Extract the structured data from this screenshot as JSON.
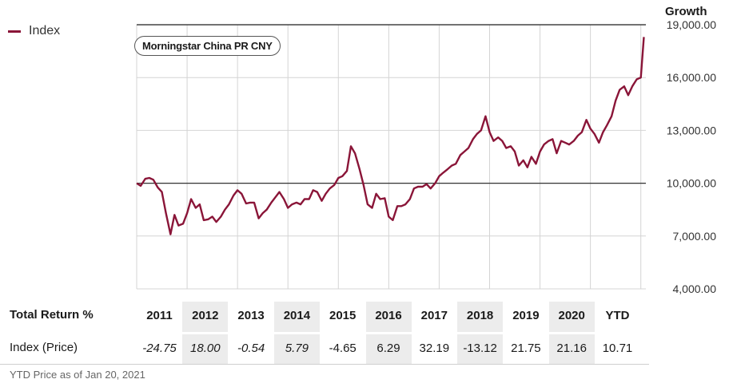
{
  "legend": {
    "label": "Index",
    "color": "#8a1538"
  },
  "growth_label": "Growth",
  "badge_label": "Morningstar China PR CNY",
  "chart_data": {
    "type": "line",
    "title": "Morningstar China PR CNY",
    "ylabel": "Growth",
    "ylim": [
      4000,
      19000
    ],
    "yticks": [
      4000,
      7000,
      10000,
      13000,
      16000,
      19000
    ],
    "ytick_labels": [
      "4,000.00",
      "7,000.00",
      "10,000.00",
      "13,000.00",
      "16,000.00",
      "19,000.00"
    ],
    "baseline": 10000,
    "xlim": [
      2011,
      2021.1
    ],
    "x_year_lines": [
      2011,
      2012,
      2013,
      2014,
      2015,
      2016,
      2017,
      2018,
      2019,
      2020,
      2021
    ],
    "series": [
      {
        "name": "Index",
        "color": "#8a1538",
        "points": [
          [
            2011.0,
            10000
          ],
          [
            2011.08,
            9850
          ],
          [
            2011.17,
            10250
          ],
          [
            2011.25,
            10300
          ],
          [
            2011.33,
            10200
          ],
          [
            2011.42,
            9750
          ],
          [
            2011.5,
            9500
          ],
          [
            2011.58,
            8300
          ],
          [
            2011.67,
            7100
          ],
          [
            2011.75,
            8200
          ],
          [
            2011.83,
            7600
          ],
          [
            2011.92,
            7700
          ],
          [
            2012.0,
            8300
          ],
          [
            2012.08,
            9100
          ],
          [
            2012.17,
            8600
          ],
          [
            2012.25,
            8800
          ],
          [
            2012.33,
            7900
          ],
          [
            2012.42,
            7950
          ],
          [
            2012.5,
            8100
          ],
          [
            2012.58,
            7800
          ],
          [
            2012.67,
            8100
          ],
          [
            2012.75,
            8500
          ],
          [
            2012.83,
            8800
          ],
          [
            2012.92,
            9300
          ],
          [
            2013.0,
            9600
          ],
          [
            2013.08,
            9400
          ],
          [
            2013.17,
            8850
          ],
          [
            2013.25,
            8900
          ],
          [
            2013.33,
            8900
          ],
          [
            2013.42,
            8000
          ],
          [
            2013.5,
            8300
          ],
          [
            2013.58,
            8500
          ],
          [
            2013.67,
            8900
          ],
          [
            2013.75,
            9200
          ],
          [
            2013.83,
            9500
          ],
          [
            2013.92,
            9100
          ],
          [
            2014.0,
            8600
          ],
          [
            2014.08,
            8800
          ],
          [
            2014.17,
            8900
          ],
          [
            2014.25,
            8800
          ],
          [
            2014.33,
            9100
          ],
          [
            2014.42,
            9100
          ],
          [
            2014.5,
            9600
          ],
          [
            2014.58,
            9500
          ],
          [
            2014.67,
            9000
          ],
          [
            2014.75,
            9400
          ],
          [
            2014.83,
            9700
          ],
          [
            2014.92,
            9900
          ],
          [
            2015.0,
            10300
          ],
          [
            2015.08,
            10400
          ],
          [
            2015.17,
            10700
          ],
          [
            2015.25,
            12100
          ],
          [
            2015.33,
            11700
          ],
          [
            2015.42,
            10800
          ],
          [
            2015.5,
            9900
          ],
          [
            2015.58,
            8800
          ],
          [
            2015.67,
            8600
          ],
          [
            2015.75,
            9400
          ],
          [
            2015.83,
            9100
          ],
          [
            2015.92,
            9150
          ],
          [
            2016.0,
            8100
          ],
          [
            2016.08,
            7900
          ],
          [
            2016.17,
            8700
          ],
          [
            2016.25,
            8700
          ],
          [
            2016.33,
            8800
          ],
          [
            2016.42,
            9100
          ],
          [
            2016.5,
            9700
          ],
          [
            2016.58,
            9800
          ],
          [
            2016.67,
            9800
          ],
          [
            2016.75,
            9950
          ],
          [
            2016.83,
            9700
          ],
          [
            2016.92,
            10000
          ],
          [
            2017.0,
            10400
          ],
          [
            2017.08,
            10600
          ],
          [
            2017.17,
            10800
          ],
          [
            2017.25,
            11000
          ],
          [
            2017.33,
            11100
          ],
          [
            2017.42,
            11600
          ],
          [
            2017.5,
            11800
          ],
          [
            2017.58,
            12000
          ],
          [
            2017.67,
            12500
          ],
          [
            2017.75,
            12800
          ],
          [
            2017.83,
            13000
          ],
          [
            2017.92,
            13800
          ],
          [
            2018.0,
            12900
          ],
          [
            2018.08,
            12400
          ],
          [
            2018.17,
            12600
          ],
          [
            2018.25,
            12400
          ],
          [
            2018.33,
            12000
          ],
          [
            2018.42,
            12100
          ],
          [
            2018.5,
            11800
          ],
          [
            2018.58,
            11000
          ],
          [
            2018.67,
            11300
          ],
          [
            2018.75,
            10900
          ],
          [
            2018.83,
            11500
          ],
          [
            2018.92,
            11100
          ],
          [
            2019.0,
            11800
          ],
          [
            2019.08,
            12200
          ],
          [
            2019.17,
            12400
          ],
          [
            2019.25,
            12500
          ],
          [
            2019.33,
            11700
          ],
          [
            2019.42,
            12400
          ],
          [
            2019.5,
            12300
          ],
          [
            2019.58,
            12200
          ],
          [
            2019.67,
            12400
          ],
          [
            2019.75,
            12700
          ],
          [
            2019.83,
            12900
          ],
          [
            2019.92,
            13600
          ],
          [
            2020.0,
            13100
          ],
          [
            2020.08,
            12800
          ],
          [
            2020.17,
            12300
          ],
          [
            2020.25,
            12900
          ],
          [
            2020.33,
            13300
          ],
          [
            2020.42,
            13800
          ],
          [
            2020.5,
            14700
          ],
          [
            2020.58,
            15300
          ],
          [
            2020.67,
            15500
          ],
          [
            2020.75,
            15000
          ],
          [
            2020.83,
            15500
          ],
          [
            2020.92,
            15900
          ],
          [
            2021.0,
            16000
          ],
          [
            2021.06,
            18300
          ]
        ]
      }
    ]
  },
  "table": {
    "row_header": "Total Return %",
    "row_label": "Index (Price)",
    "years": [
      "2011",
      "2012",
      "2013",
      "2014",
      "2015",
      "2016",
      "2017",
      "2018",
      "2019",
      "2020",
      "YTD"
    ],
    "values": [
      "-24.75",
      "18.00",
      "-0.54",
      "5.79",
      "-4.65",
      "6.29",
      "32.19",
      "-13.12",
      "21.75",
      "21.16",
      "10.71"
    ],
    "italic": [
      true,
      true,
      true,
      true,
      false,
      false,
      false,
      false,
      false,
      false,
      false
    ]
  },
  "footnote": "YTD Price as of Jan 20, 2021"
}
